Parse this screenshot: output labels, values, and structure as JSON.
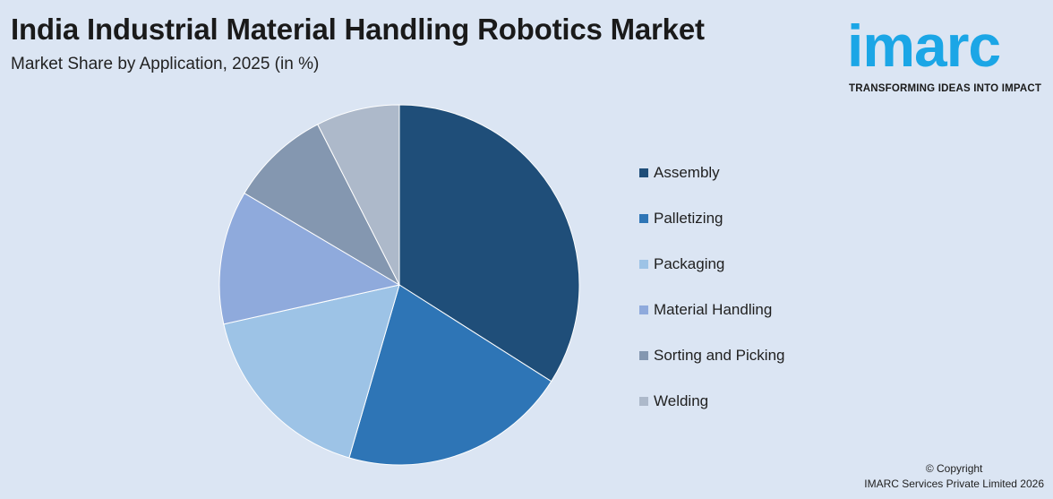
{
  "header": {
    "title": "India Industrial Material Handling Robotics Market",
    "subtitle": "Market Share by Application, 2025 (in %)"
  },
  "logo": {
    "wordmark": "imarc",
    "tagline": "TRANSFORMING IDEAS INTO IMPACT",
    "color": "#1ba6e6"
  },
  "chart_data": {
    "type": "pie",
    "title": "India Industrial Material Handling Robotics Market",
    "subtitle": "Market Share by Application, 2025 (in %)",
    "legend_position": "right",
    "start_angle_deg": 0,
    "direction": "clockwise",
    "series": [
      {
        "name": "Assembly",
        "value": 34,
        "color": "#1f4e79"
      },
      {
        "name": "Palletizing",
        "value": 20.5,
        "color": "#2e75b6"
      },
      {
        "name": "Packaging",
        "value": 17,
        "color": "#9dc3e6"
      },
      {
        "name": "Material Handling",
        "value": 12,
        "color": "#8faadc"
      },
      {
        "name": "Sorting and Picking",
        "value": 9,
        "color": "#8497b0"
      },
      {
        "name": "Welding",
        "value": 7.5,
        "color": "#adb9ca"
      }
    ]
  },
  "footer": {
    "copyright_line1": "© Copyright",
    "copyright_line2": "IMARC Services Private Limited 2026"
  }
}
